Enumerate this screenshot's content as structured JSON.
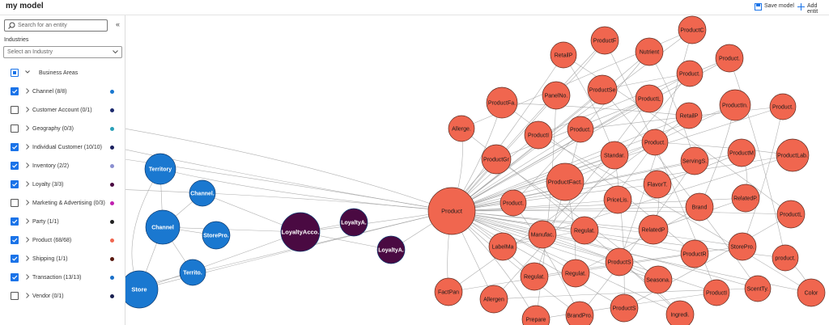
{
  "header": {
    "title": "my model",
    "actions": [
      "Save model",
      "Add entit"
    ]
  },
  "sidebar": {
    "search_placeholder": "Search for an entity",
    "industries_label": "Industries",
    "industry_select": "Select an Industry",
    "group_label": "Business Areas",
    "items": [
      {
        "label": "Channel (8/8)",
        "checked": true,
        "color": "#1a78d0"
      },
      {
        "label": "Customer Account (0/1)",
        "checked": false,
        "color": "#1c2a6e"
      },
      {
        "label": "Geography (0/3)",
        "checked": false,
        "color": "#2aa0b8"
      },
      {
        "label": "Individual Customer (10/10)",
        "checked": true,
        "color": "#1b1f5e"
      },
      {
        "label": "Inventory (2/2)",
        "checked": true,
        "color": "#8a8fd0"
      },
      {
        "label": "Loyalty (3/3)",
        "checked": true,
        "color": "#4a0a42"
      },
      {
        "label": "Marketing & Advertising (0/3)",
        "checked": false,
        "color": "#c020b0"
      },
      {
        "label": "Party (1/1)",
        "checked": true,
        "color": "#222222"
      },
      {
        "label": "Product (68/68)",
        "checked": true,
        "color": "#f0664f"
      },
      {
        "label": "Shipping (1/1)",
        "checked": true,
        "color": "#5a1a10"
      },
      {
        "label": "Transaction (13/13)",
        "checked": true,
        "color": "#1a6fc8"
      },
      {
        "label": "Vendor (0/1)",
        "checked": false,
        "color": "#1a2050"
      }
    ]
  },
  "graph": {
    "clusters": [
      {
        "color": "#1a78d0",
        "text_color": "#ffffff",
        "nodes": [
          "Territory",
          "Channel.",
          "Channel",
          "StorePro.",
          "Territo.",
          "Store"
        ]
      },
      {
        "color": "#4a0a42",
        "text_color": "#ffffff",
        "nodes": [
          "LoyaltyAcco.",
          "LoyaltyA.",
          "LoyaltyA."
        ]
      },
      {
        "color": "#f0664f",
        "text_color": "#1a1a1a",
        "nodes": [
          "Product",
          "ProductF",
          "ProductC",
          "RetailP",
          "Nutrient",
          "Product.",
          "Product.",
          "PanelNo.",
          "ProductSe",
          "ProductFa.",
          "ProductL",
          "ProductIn.",
          "Product.",
          "RetailP",
          "Allerge.",
          "ProductI",
          "Product.",
          "Product.",
          "ProductM",
          "ProductLab.",
          "ProductGr",
          "Standar.",
          "ServingS.",
          "ProductFact.",
          "FlavorT.",
          "PriceLis.",
          "RelatedP.",
          "Brand",
          "Product.",
          "ProductL",
          "Manufac.",
          "Regulat.",
          "RelatedP",
          "LabelMa",
          "StorePro.",
          "product.",
          "ProductS",
          "ProductR",
          "Regulat.",
          "Regulat.",
          "Seasona.",
          "FactPan",
          "Allergen",
          "ProductI",
          "ScentTy.",
          "Color",
          "BrandPro.",
          "ProductS",
          "Ingredi.",
          "Prepare"
        ]
      }
    ]
  }
}
